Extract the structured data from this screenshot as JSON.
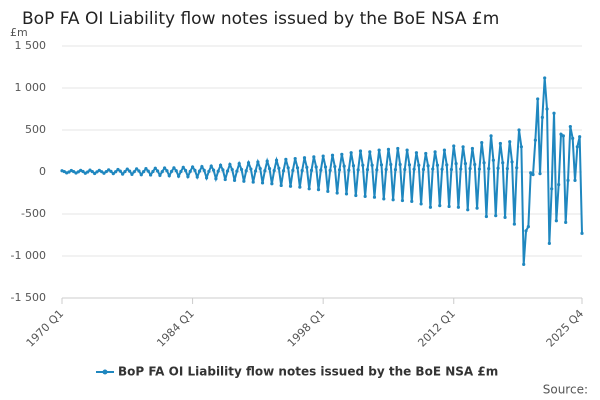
{
  "chart_data": {
    "type": "line",
    "title": "BoP FA OI Liability flow notes issued by the BoE NSA £m",
    "y_label": "£m",
    "source": "Source:",
    "categories": [
      "1970 Q1",
      null,
      null,
      null,
      null,
      null,
      null,
      null,
      null,
      null,
      null,
      null,
      null,
      null,
      null,
      null,
      null,
      null,
      null,
      null,
      null,
      null,
      null,
      null,
      null,
      null,
      null,
      null,
      null,
      null,
      null,
      null,
      null,
      null,
      null,
      null,
      null,
      null,
      null,
      null,
      null,
      null,
      null,
      null,
      null,
      null,
      null,
      null,
      null,
      null,
      null,
      null,
      null,
      null,
      null,
      null,
      "1984 Q1",
      null,
      null,
      null,
      null,
      null,
      null,
      null,
      null,
      null,
      null,
      null,
      null,
      null,
      null,
      null,
      null,
      null,
      null,
      null,
      null,
      null,
      null,
      null,
      null,
      null,
      null,
      null,
      null,
      null,
      null,
      null,
      null,
      null,
      null,
      null,
      null,
      null,
      null,
      null,
      null,
      null,
      null,
      null,
      null,
      null,
      null,
      null,
      null,
      null,
      null,
      null,
      null,
      null,
      null,
      null,
      "1998 Q1",
      null,
      null,
      null,
      null,
      null,
      null,
      null,
      null,
      null,
      null,
      null,
      null,
      null,
      null,
      null,
      null,
      null,
      null,
      null,
      null,
      null,
      null,
      null,
      null,
      null,
      null,
      null,
      null,
      null,
      null,
      null,
      null,
      null,
      null,
      null,
      null,
      null,
      null,
      null,
      null,
      null,
      null,
      null,
      null,
      null,
      null,
      null,
      null,
      null,
      null,
      null,
      null,
      null,
      null,
      null,
      "2012 Q1",
      null,
      null,
      null,
      null,
      null,
      null,
      null,
      null,
      null,
      null,
      null,
      null,
      null,
      null,
      null,
      null,
      null,
      null,
      null,
      null,
      null,
      null,
      null,
      null,
      null,
      null,
      null,
      null,
      null,
      null,
      null,
      null,
      null,
      null,
      null,
      null,
      null,
      null,
      null,
      null,
      null,
      null,
      null,
      null,
      null,
      null,
      null,
      null,
      null,
      null,
      null,
      null,
      null,
      null,
      "2025 Q4"
    ],
    "series": [
      {
        "name": "BoP FA OI Liability flow notes issued by the BoE NSA £m",
        "color": "#1f87bf",
        "values": [
          15,
          5,
          -10,
          0,
          18,
          5,
          -12,
          2,
          20,
          6,
          -15,
          0,
          22,
          5,
          -18,
          2,
          20,
          4,
          -15,
          5,
          25,
          8,
          -20,
          3,
          30,
          10,
          -25,
          5,
          35,
          10,
          -28,
          4,
          38,
          12,
          -32,
          5,
          40,
          10,
          -35,
          6,
          45,
          12,
          -40,
          5,
          48,
          15,
          -45,
          8,
          50,
          15,
          -50,
          6,
          55,
          18,
          -55,
          8,
          60,
          20,
          -60,
          10,
          65,
          20,
          -70,
          8,
          70,
          22,
          -80,
          10,
          80,
          25,
          -90,
          12,
          90,
          28,
          -100,
          10,
          100,
          30,
          -110,
          15,
          110,
          35,
          -120,
          12,
          120,
          40,
          -130,
          15,
          130,
          40,
          -140,
          18,
          140,
          45,
          -160,
          15,
          150,
          50,
          -170,
          20,
          160,
          50,
          -180,
          18,
          170,
          55,
          -200,
          20,
          180,
          60,
          -210,
          22,
          190,
          60,
          -230,
          20,
          200,
          65,
          -250,
          25,
          210,
          70,
          -260,
          22,
          230,
          75,
          -280,
          25,
          250,
          80,
          -290,
          28,
          240,
          80,
          -300,
          25,
          260,
          85,
          -320,
          30,
          270,
          90,
          -330,
          28,
          280,
          90,
          -340,
          30,
          260,
          85,
          -350,
          32,
          230,
          80,
          -380,
          30,
          220,
          75,
          -420,
          35,
          240,
          80,
          -400,
          32,
          260,
          85,
          -410,
          30,
          310,
          100,
          -420,
          35,
          300,
          100,
          -450,
          40,
          280,
          90,
          -430,
          35,
          350,
          110,
          -530,
          40,
          430,
          140,
          -520,
          45,
          340,
          110,
          -540,
          40,
          360,
          120,
          -620,
          50,
          500,
          300,
          -1100,
          -700,
          -650,
          -10,
          -30,
          380,
          870,
          -20,
          650,
          1120,
          750,
          -850,
          -200,
          700,
          -580,
          -150,
          450,
          430,
          -600,
          -100,
          540,
          400,
          -100,
          300,
          420,
          -730
        ]
      }
    ],
    "ylim": [
      -1500,
      1500
    ],
    "yticks": [
      {
        "value": -1500,
        "label": "-1 500"
      },
      {
        "value": -1000,
        "label": "-1 000"
      },
      -500,
      0,
      500,
      {
        "value": 1000,
        "label": "1 000"
      },
      {
        "value": 1500,
        "label": "1 500"
      }
    ],
    "grid": true
  }
}
